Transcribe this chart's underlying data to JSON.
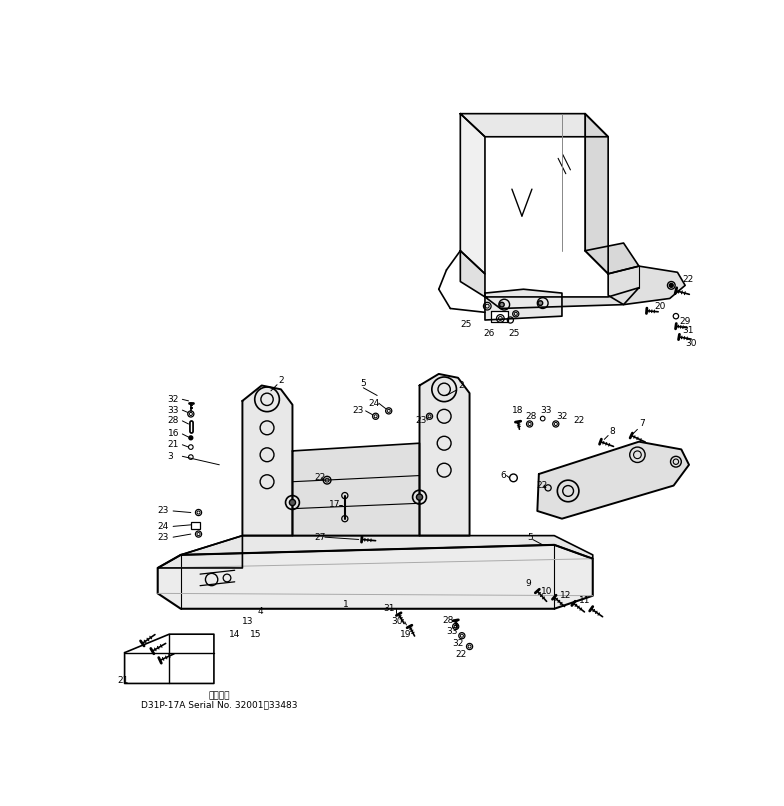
{
  "background_color": "#ffffff",
  "bottom_text_line1": "適用号機",
  "bottom_text_line2": "D31P-17A Serial No. 32001～33483",
  "line_color": "#000000",
  "text_color": "#000000"
}
